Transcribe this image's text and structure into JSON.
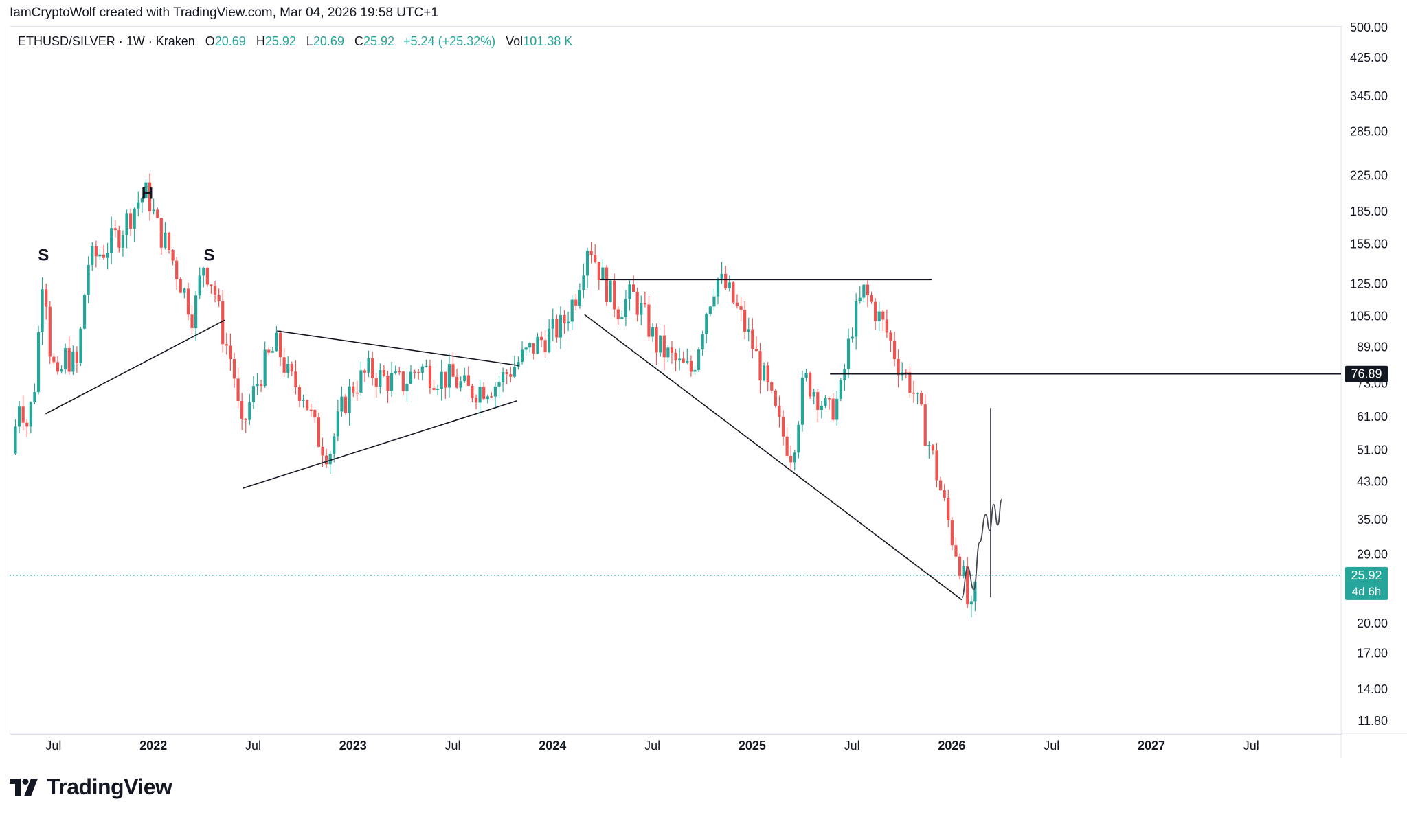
{
  "header": {
    "attribution": "IamCryptoWolf created with TradingView.com, Mar 04, 2026 19:58 UTC+1"
  },
  "legend": {
    "symbol": "ETHUSD/SILVER · 1W · Kraken",
    "open_label": "O",
    "open": "20.69",
    "high_label": "H",
    "high": "25.92",
    "low_label": "L",
    "low": "20.69",
    "close_label": "C",
    "close": "25.92",
    "change": "+5.24 (+25.32%)",
    "vol_label": "Vol",
    "vol": "101.38 K"
  },
  "footer": {
    "brand": "TradingView"
  },
  "colors": {
    "up": "#26a69a",
    "down": "#ef5350",
    "line": "#131722",
    "axis_text": "#131722"
  },
  "chart_data": {
    "type": "candlestick",
    "scale": "log",
    "ylim": [
      11.8,
      500
    ],
    "xlim": [
      2021.28,
      2027.95
    ],
    "y_ticks": [
      "500.00",
      "425.00",
      "345.00",
      "285.00",
      "225.00",
      "185.00",
      "155.00",
      "125.00",
      "105.00",
      "89.00",
      "73.00",
      "61.00",
      "51.00",
      "43.00",
      "35.00",
      "29.00",
      "20.00",
      "17.00",
      "14.00",
      "11.80"
    ],
    "x_ticks": [
      {
        "label": "Jul",
        "t": 2021.5,
        "bold": false
      },
      {
        "label": "2022",
        "t": 2022.0,
        "bold": true
      },
      {
        "label": "Jul",
        "t": 2022.5,
        "bold": false
      },
      {
        "label": "2023",
        "t": 2023.0,
        "bold": true
      },
      {
        "label": "Jul",
        "t": 2023.5,
        "bold": false
      },
      {
        "label": "2024",
        "t": 2024.0,
        "bold": true
      },
      {
        "label": "Jul",
        "t": 2024.5,
        "bold": false
      },
      {
        "label": "2025",
        "t": 2025.0,
        "bold": true
      },
      {
        "label": "Jul",
        "t": 2025.5,
        "bold": false
      },
      {
        "label": "2026",
        "t": 2026.0,
        "bold": true
      },
      {
        "label": "Jul",
        "t": 2026.5,
        "bold": false
      },
      {
        "label": "2027",
        "t": 2027.0,
        "bold": true
      },
      {
        "label": "Jul",
        "t": 2027.5,
        "bold": false
      }
    ],
    "price_path": [
      [
        2021.29,
        50
      ],
      [
        2021.33,
        68
      ],
      [
        2021.37,
        58
      ],
      [
        2021.41,
        75
      ],
      [
        2021.45,
        145
      ],
      [
        2021.48,
        90
      ],
      [
        2021.52,
        72
      ],
      [
        2021.56,
        85
      ],
      [
        2021.62,
        80
      ],
      [
        2021.67,
        140
      ],
      [
        2021.75,
        150
      ],
      [
        2021.83,
        165
      ],
      [
        2021.92,
        195
      ],
      [
        2021.97,
        205
      ],
      [
        2022.02,
        170
      ],
      [
        2022.08,
        150
      ],
      [
        2022.14,
        125
      ],
      [
        2022.2,
        105
      ],
      [
        2022.25,
        140
      ],
      [
        2022.3,
        125
      ],
      [
        2022.35,
        95
      ],
      [
        2022.4,
        80
      ],
      [
        2022.44,
        55
      ],
      [
        2022.48,
        65
      ],
      [
        2022.55,
        80
      ],
      [
        2022.62,
        90
      ],
      [
        2022.68,
        75
      ],
      [
        2022.75,
        70
      ],
      [
        2022.82,
        55
      ],
      [
        2022.88,
        50
      ],
      [
        2022.95,
        65
      ],
      [
        2023.0,
        72
      ],
      [
        2023.08,
        78
      ],
      [
        2023.15,
        75
      ],
      [
        2023.25,
        73
      ],
      [
        2023.33,
        80
      ],
      [
        2023.42,
        76
      ],
      [
        2023.5,
        75
      ],
      [
        2023.58,
        70
      ],
      [
        2023.66,
        72
      ],
      [
        2023.72,
        73
      ],
      [
        2023.78,
        78
      ],
      [
        2023.86,
        85
      ],
      [
        2023.95,
        93
      ],
      [
        2024.05,
        100
      ],
      [
        2024.12,
        120
      ],
      [
        2024.18,
        160
      ],
      [
        2024.22,
        140
      ],
      [
        2024.28,
        120
      ],
      [
        2024.33,
        110
      ],
      [
        2024.4,
        118
      ],
      [
        2024.46,
        105
      ],
      [
        2024.52,
        90
      ],
      [
        2024.58,
        85
      ],
      [
        2024.64,
        80
      ],
      [
        2024.7,
        78
      ],
      [
        2024.76,
        105
      ],
      [
        2024.82,
        130
      ],
      [
        2024.88,
        120
      ],
      [
        2024.94,
        105
      ],
      [
        2025.0,
        90
      ],
      [
        2025.08,
        70
      ],
      [
        2025.14,
        57
      ],
      [
        2025.2,
        50
      ],
      [
        2025.26,
        75
      ],
      [
        2025.32,
        70
      ],
      [
        2025.38,
        62
      ],
      [
        2025.44,
        68
      ],
      [
        2025.5,
        100
      ],
      [
        2025.56,
        120
      ],
      [
        2025.62,
        108
      ],
      [
        2025.68,
        95
      ],
      [
        2025.73,
        82
      ],
      [
        2025.8,
        72
      ],
      [
        2025.86,
        58
      ],
      [
        2025.9,
        50
      ],
      [
        2025.95,
        40
      ],
      [
        2026.0,
        32
      ],
      [
        2026.05,
        27
      ],
      [
        2026.08,
        22
      ],
      [
        2026.1,
        20.69
      ],
      [
        2026.13,
        25.92
      ]
    ],
    "price_line": {
      "value": 25.92,
      "label": "25.92",
      "sublabel": "4d 6h"
    },
    "level_line": {
      "value": 76.89,
      "label": "76.89"
    },
    "annotations": [
      {
        "label": "S",
        "t": 2021.45,
        "p": 142
      },
      {
        "label": "H",
        "t": 2021.97,
        "p": 198
      },
      {
        "label": "S",
        "t": 2022.28,
        "p": 142
      }
    ],
    "trendlines": [
      {
        "from": [
          2021.46,
          62
        ],
        "to": [
          2022.36,
          103
        ]
      },
      {
        "from": [
          2022.45,
          41.5
        ],
        "to": [
          2023.82,
          66.5
        ]
      },
      {
        "from": [
          2022.62,
          97
        ],
        "to": [
          2023.83,
          80.5
        ]
      },
      {
        "from": [
          2024.16,
          106
        ],
        "to": [
          2026.05,
          22.7
        ]
      },
      {
        "from": [
          2024.24,
          128
        ],
        "to": [
          2025.9,
          128
        ]
      },
      {
        "from": [
          2025.39,
          76.89
        ],
        "to": [
          2027.95,
          76.89
        ]
      },
      {
        "from": [
          2026.195,
          23
        ],
        "to": [
          2026.195,
          64
        ]
      }
    ],
    "projection": [
      [
        2026.05,
        23
      ],
      [
        2026.08,
        27
      ],
      [
        2026.11,
        24
      ],
      [
        2026.14,
        31
      ],
      [
        2026.17,
        36
      ],
      [
        2026.19,
        33
      ],
      [
        2026.21,
        38
      ],
      [
        2026.23,
        34
      ],
      [
        2026.25,
        39
      ]
    ]
  }
}
